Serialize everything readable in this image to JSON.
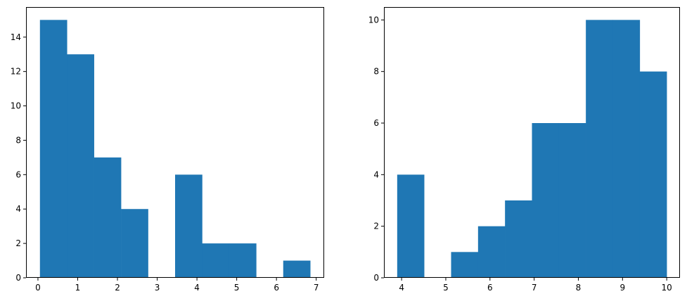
{
  "chart_data": [
    {
      "type": "bar",
      "subtype": "histogram",
      "color": "#1f77b4",
      "bin_edges": [
        0.05,
        0.73,
        1.41,
        2.09,
        2.77,
        3.45,
        4.13,
        4.81,
        5.49,
        6.17,
        6.85
      ],
      "values": [
        15,
        13,
        7,
        4,
        0,
        6,
        2,
        2,
        0,
        1
      ],
      "xlim": [
        -0.3,
        7.2
      ],
      "ylim": [
        0,
        15.75
      ],
      "xticks": [
        0,
        1,
        2,
        3,
        4,
        5,
        6,
        7
      ],
      "yticks": [
        0,
        2,
        4,
        6,
        8,
        10,
        12,
        14
      ],
      "xtick_labels": [
        "0",
        "1",
        "2",
        "3",
        "4",
        "5",
        "6",
        "7"
      ],
      "ytick_labels": [
        "0",
        "2",
        "4",
        "6",
        "8",
        "10",
        "12",
        "14"
      ],
      "grid": false
    },
    {
      "type": "bar",
      "subtype": "histogram",
      "color": "#1f77b4",
      "bin_edges": [
        3.9,
        4.51,
        5.12,
        5.73,
        6.34,
        6.95,
        7.56,
        8.17,
        8.78,
        9.39,
        10.0
      ],
      "values": [
        4,
        0,
        1,
        2,
        3,
        6,
        6,
        10,
        10,
        8
      ],
      "xlim": [
        3.6,
        10.3
      ],
      "ylim": [
        0,
        10.5
      ],
      "xticks": [
        4,
        5,
        6,
        7,
        8,
        9,
        10
      ],
      "yticks": [
        0,
        2,
        4,
        6,
        8,
        10
      ],
      "xtick_labels": [
        "4",
        "5",
        "6",
        "7",
        "8",
        "9",
        "10"
      ],
      "ytick_labels": [
        "0",
        "2",
        "4",
        "6",
        "8",
        "10"
      ],
      "grid": false
    }
  ]
}
